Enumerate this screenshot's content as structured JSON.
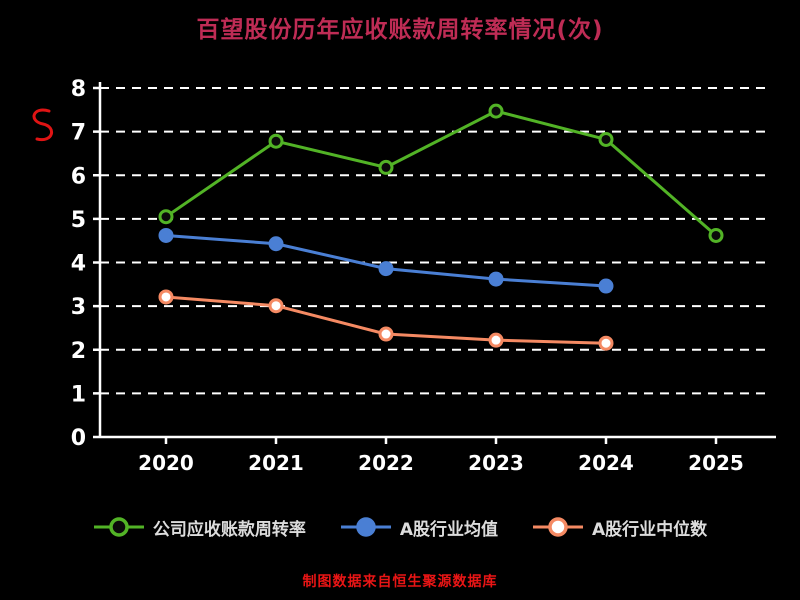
{
  "title": "百望股份历年应收账款周转率情况(次)",
  "caption": "制图数据来自恒生聚源数据库",
  "chart_data": {
    "type": "line",
    "x_labels": [
      "2020",
      "2021",
      "2022",
      "2023",
      "2024",
      "2025"
    ],
    "series": [
      {
        "name": "公司应收账款周转率",
        "color": "#52b326",
        "marker_fill": "#0a0a0a",
        "values": [
          5.05,
          6.78,
          6.18,
          7.47,
          6.82,
          4.62
        ]
      },
      {
        "name": "A股行业均值",
        "color": "#4a7fd4",
        "marker_fill": "#4a7fd4",
        "values": [
          4.62,
          4.43,
          3.86,
          3.62,
          3.46,
          null
        ]
      },
      {
        "name": "A股行业中位数",
        "color": "#f58a63",
        "marker_fill": "#ffffff",
        "values": [
          3.21,
          3.01,
          2.36,
          2.22,
          2.15,
          null
        ]
      }
    ],
    "ylim": [
      0,
      8
    ],
    "yticks": [
      0,
      1,
      2,
      3,
      4,
      5,
      6,
      7,
      8
    ],
    "grid": "horizontal-dashed",
    "legend_position": "bottom",
    "background": "#000000",
    "axis_color": "#ffffff",
    "title_color": "#bf2c55",
    "caption_color": "#ea1515",
    "legend_text_color": "#dcdcdc",
    "accent_squiggle_color": "#e01414"
  }
}
